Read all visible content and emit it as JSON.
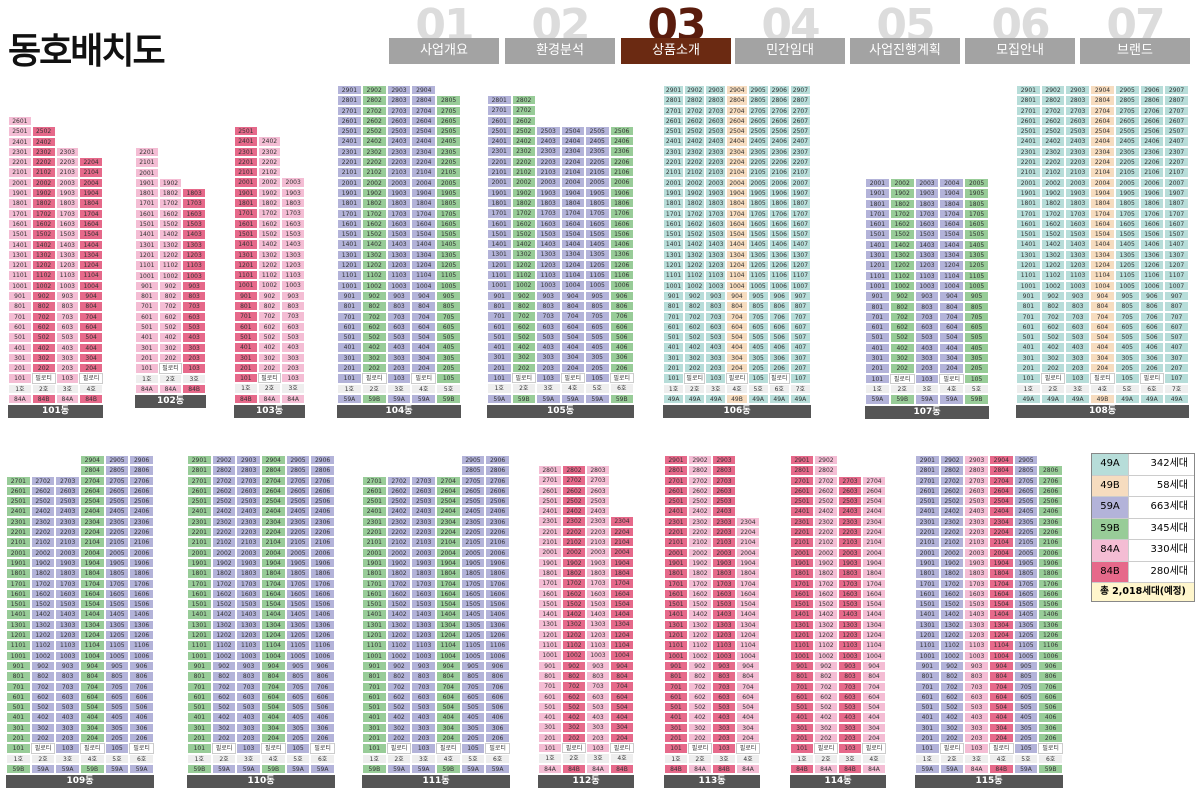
{
  "page_title": "동호배치도",
  "tabs": [
    {
      "num": "01",
      "label": "사업개요",
      "active": false
    },
    {
      "num": "02",
      "label": "환경분석",
      "active": false
    },
    {
      "num": "03",
      "label": "상품소개",
      "active": true
    },
    {
      "num": "04",
      "label": "민간임대",
      "active": false
    },
    {
      "num": "05",
      "label": "사업진행계획",
      "active": false
    },
    {
      "num": "06",
      "label": "모집안내",
      "active": false
    },
    {
      "num": "07",
      "label": "브랜드",
      "active": false
    }
  ],
  "colors": {
    "49A": "#b7ddd9",
    "49B": "#f6dcbf",
    "59A": "#b3b3d9",
    "59B": "#98cc98",
    "84A": "#f4bdd4",
    "84B": "#e6698a"
  },
  "legend": {
    "items": [
      {
        "type": "49A",
        "count": "342세대"
      },
      {
        "type": "49B",
        "count": "58세대"
      },
      {
        "type": "59A",
        "count": "663세대"
      },
      {
        "type": "59B",
        "count": "345세대"
      },
      {
        "type": "84A",
        "count": "330세대"
      },
      {
        "type": "84B",
        "count": "280세대"
      }
    ],
    "total": "총 2,018세대(예정)"
  },
  "buildings": [
    {
      "name": "101동",
      "types": [
        "84A",
        "84B",
        "84A",
        "84B"
      ],
      "floors": [
        26,
        25,
        23,
        22
      ]
    },
    {
      "name": "102동",
      "types": [
        "84A",
        "84A",
        "84B"
      ],
      "floors": [
        22,
        19,
        18
      ]
    },
    {
      "name": "103동",
      "types": [
        "84B",
        "84A",
        "84A"
      ],
      "floors": [
        25,
        24,
        20
      ]
    },
    {
      "name": "104동",
      "types": [
        "59A",
        "59B",
        "59A",
        "59A",
        "59B"
      ],
      "floors": [
        29,
        29,
        29,
        29,
        28
      ]
    },
    {
      "name": "105동",
      "types": [
        "59A",
        "59B",
        "59A",
        "59A",
        "59A",
        "59B"
      ],
      "floors": [
        28,
        28,
        25,
        25,
        25,
        25
      ]
    },
    {
      "name": "106동",
      "types": [
        "49A",
        "49A",
        "49A",
        "49B",
        "49A",
        "49A",
        "49A"
      ],
      "floors": [
        29,
        29,
        29,
        29,
        29,
        29,
        29
      ]
    },
    {
      "name": "107동",
      "types": [
        "59A",
        "59B",
        "59A",
        "59A",
        "59B"
      ],
      "floors": [
        20,
        20,
        20,
        20,
        20
      ]
    },
    {
      "name": "108동",
      "types": [
        "49A",
        "49A",
        "49A",
        "49B",
        "49A",
        "49A",
        "49A"
      ],
      "floors": [
        29,
        29,
        29,
        29,
        29,
        29,
        29
      ]
    },
    {
      "name": "109동",
      "types": [
        "59B",
        "59A",
        "59A",
        "59B",
        "59A",
        "59A"
      ],
      "floors": [
        27,
        27,
        27,
        29,
        29,
        29
      ]
    },
    {
      "name": "110동",
      "types": [
        "59B",
        "59A",
        "59A",
        "59B",
        "59A",
        "59A"
      ],
      "floors": [
        29,
        29,
        29,
        29,
        29,
        29
      ]
    },
    {
      "name": "111동",
      "types": [
        "59B",
        "59A",
        "59A",
        "59B",
        "59A",
        "59A"
      ],
      "floors": [
        27,
        27,
        27,
        27,
        29,
        29
      ]
    },
    {
      "name": "112동",
      "types": [
        "84A",
        "84B",
        "84A",
        "84B"
      ],
      "floors": [
        28,
        28,
        28,
        23
      ]
    },
    {
      "name": "113동",
      "types": [
        "84B",
        "84A",
        "84B",
        "84A"
      ],
      "floors": [
        29,
        29,
        29,
        23
      ]
    },
    {
      "name": "114동",
      "types": [
        "84B",
        "84A",
        "84B",
        "84A"
      ],
      "floors": [
        29,
        29,
        27,
        27
      ]
    },
    {
      "name": "115동",
      "types": [
        "59A",
        "59A",
        "84A",
        "84B",
        "59A",
        "59B"
      ],
      "floors": [
        29,
        29,
        29,
        29,
        29,
        28
      ]
    }
  ],
  "pilotis_label": "필로티",
  "core_labels": [
    "1호",
    "2호",
    "3호",
    "4호",
    "5호",
    "6호",
    "7호"
  ]
}
